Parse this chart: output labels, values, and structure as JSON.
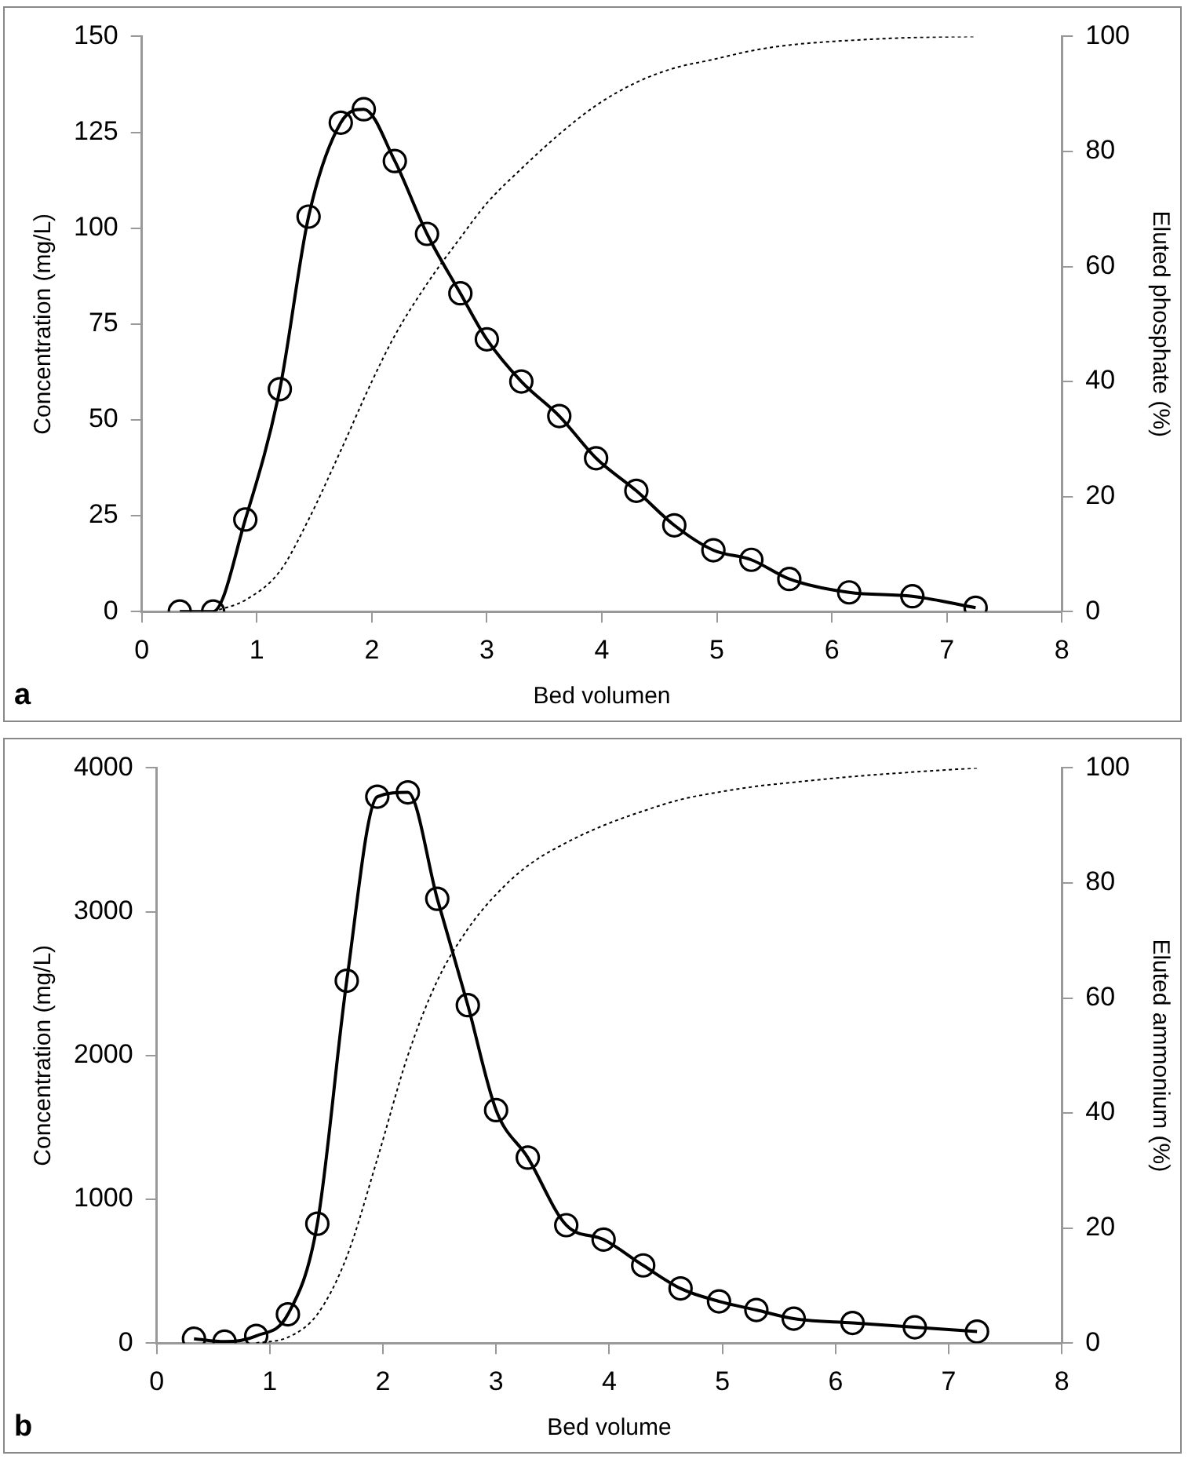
{
  "chart_data": [
    {
      "type": "line",
      "xlabel": "Bed volumen",
      "ylabel": "Concentration (mg/L)",
      "y2label": "Eluted phosphate (%)",
      "annotations": [
        "a"
      ],
      "xlim": [
        0,
        8
      ],
      "xticks": [
        0,
        1,
        2,
        3,
        4,
        5,
        6,
        7,
        8
      ],
      "ylim": [
        0,
        150
      ],
      "yticks": [
        0,
        25,
        50,
        75,
        100,
        125,
        150
      ],
      "y2lim": [
        0,
        100
      ],
      "y2ticks": [
        0,
        20,
        40,
        60,
        80,
        100
      ],
      "grid": false,
      "legend": false,
      "series": [
        {
          "color": "#000000",
          "marker": "circle",
          "line_style": "solid",
          "x": [
            0.33,
            0.62,
            0.9,
            1.2,
            1.45,
            1.73,
            1.93,
            2.2,
            2.48,
            2.77,
            3.0,
            3.3,
            3.63,
            3.95,
            4.3,
            4.63,
            4.97,
            5.3,
            5.63,
            6.15,
            6.7,
            7.25
          ],
          "values": [
            0,
            0,
            24,
            58,
            103,
            127.5,
            131,
            117.5,
            98.5,
            83,
            71,
            60,
            51,
            40,
            31.5,
            22.5,
            16,
            13.5,
            8.5,
            5,
            4,
            1
          ]
        },
        {
          "color": "#000000",
          "marker": "none",
          "line_style": "dotted",
          "axis": "y2",
          "x": [
            0.62,
            0.9,
            1.2,
            1.45,
            1.73,
            2.0,
            2.2,
            2.48,
            2.77,
            3.0,
            3.3,
            3.63,
            3.95,
            4.3,
            4.63,
            4.97,
            5.3,
            5.63,
            6.15,
            6.7,
            7.25
          ],
          "values": [
            0,
            2,
            7,
            16,
            28,
            40,
            48,
            57,
            65,
            71,
            77,
            83,
            88,
            92,
            94.5,
            96,
            97.5,
            98.5,
            99.3,
            99.8,
            100
          ]
        }
      ]
    },
    {
      "type": "line",
      "xlabel": "Bed volume",
      "ylabel": "Concentration (mg/L)",
      "y2label": "Eluted ammonium (%)",
      "annotations": [
        "b"
      ],
      "xlim": [
        0,
        8
      ],
      "xticks": [
        0,
        1,
        2,
        3,
        4,
        5,
        6,
        7,
        8
      ],
      "ylim": [
        0,
        4000
      ],
      "yticks": [
        0,
        1000,
        2000,
        3000,
        4000
      ],
      "y2lim": [
        0,
        100
      ],
      "y2ticks": [
        0,
        20,
        40,
        60,
        80,
        100
      ],
      "grid": false,
      "legend": false,
      "series": [
        {
          "color": "#000000",
          "marker": "circle",
          "line_style": "solid",
          "x": [
            0.33,
            0.6,
            0.88,
            1.16,
            1.42,
            1.68,
            1.95,
            2.22,
            2.48,
            2.75,
            3.0,
            3.28,
            3.62,
            3.95,
            4.3,
            4.63,
            4.97,
            5.3,
            5.63,
            6.15,
            6.7,
            7.25
          ],
          "values": [
            30,
            10,
            50,
            200,
            830,
            2520,
            3800,
            3830,
            3090,
            2350,
            1620,
            1290,
            820,
            720,
            540,
            380,
            290,
            230,
            170,
            140,
            110,
            80
          ]
        },
        {
          "color": "#000000",
          "marker": "none",
          "line_style": "dotted",
          "axis": "y2",
          "x": [
            0.88,
            1.16,
            1.42,
            1.68,
            1.95,
            2.22,
            2.48,
            2.75,
            3.0,
            3.28,
            3.62,
            3.95,
            4.3,
            4.63,
            4.97,
            5.3,
            5.63,
            6.15,
            6.7,
            7.25
          ],
          "values": [
            0,
            1,
            5,
            15,
            32,
            50,
            63,
            72,
            78,
            83,
            87,
            90,
            92.5,
            94.5,
            95.8,
            96.8,
            97.5,
            98.5,
            99.3,
            100
          ]
        }
      ]
    }
  ]
}
